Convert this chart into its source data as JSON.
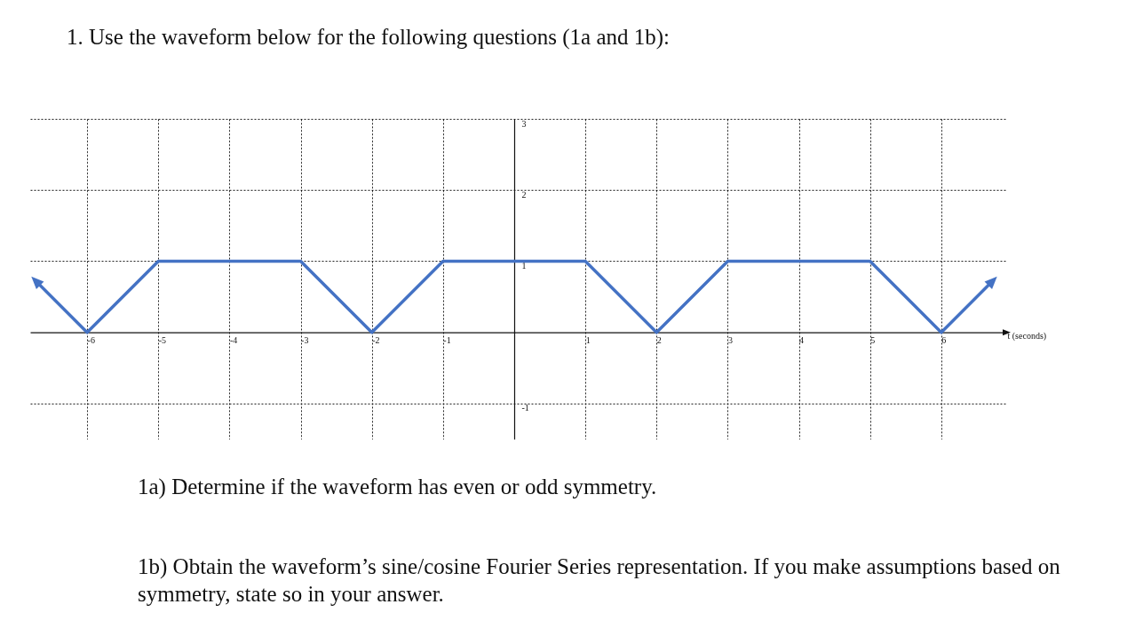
{
  "chart_data": {
    "type": "line",
    "title": "1. Use the waveform below for the following questions (1a and 1b):",
    "xlabel": "t (seconds)",
    "x": [
      -6.7,
      -6,
      -5,
      -3,
      -2,
      -1,
      1,
      2,
      3,
      5,
      6,
      6.7
    ],
    "series": [
      {
        "color": "#4472c4",
        "values": [
          0.7,
          0,
          1,
          1,
          0,
          1,
          1,
          0,
          1,
          1,
          0,
          0.7
        ]
      }
    ],
    "xlim": [
      -6.8,
      6.9
    ],
    "xticks": [
      -6,
      -5,
      -4,
      -3,
      -2,
      -1,
      1,
      2,
      3,
      4,
      5,
      6
    ],
    "ylim": [
      -1.5,
      3
    ],
    "yticks": [
      -1,
      1,
      2,
      3
    ],
    "grid": true,
    "marker": "none",
    "line_style": "solid",
    "annotations": [
      "1a) Determine if the waveform has even or odd symmetry.",
      "1b) Obtain the waveform’s sine/cosine Fourier Series representation. If you make assumptions based on symmetry, state so in your answer."
    ]
  }
}
